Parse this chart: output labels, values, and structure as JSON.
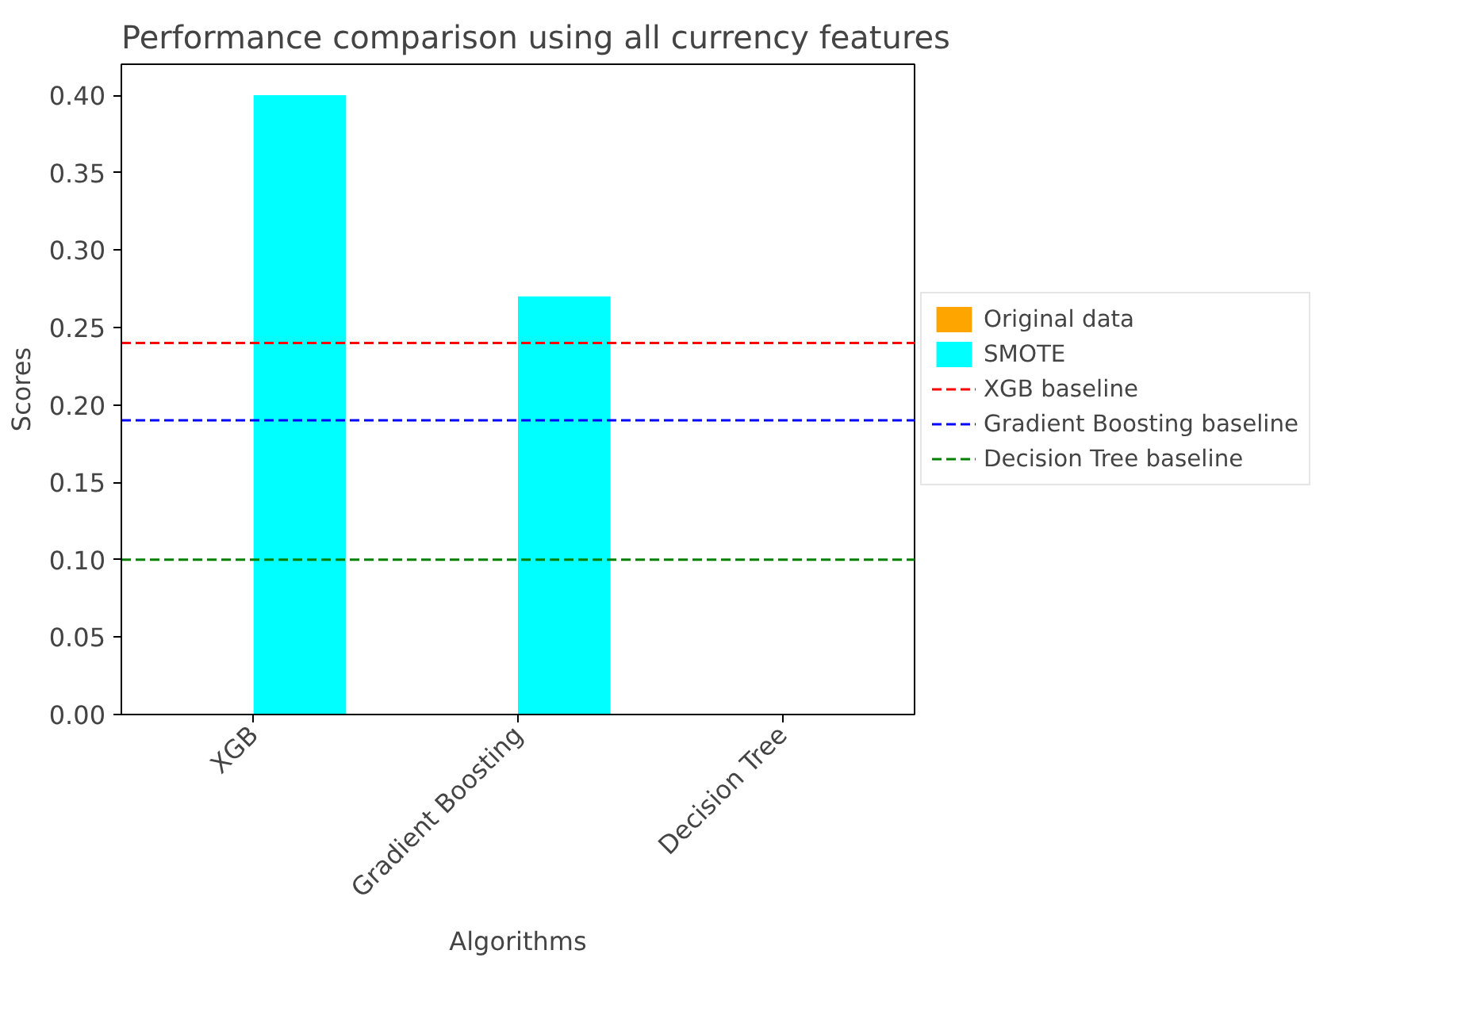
{
  "chart_data": {
    "type": "bar",
    "title": "Performance comparison using all currency features",
    "xlabel": "Algorithms",
    "ylabel": "Scores",
    "categories": [
      "XGB",
      "Gradient Boosting",
      "Decision Tree"
    ],
    "series": [
      {
        "name": "Original data",
        "color": "#ffa500",
        "values": [
          0,
          0,
          0
        ]
      },
      {
        "name": "SMOTE",
        "color": "#00ffff",
        "values": [
          0.4,
          0.27,
          0
        ]
      }
    ],
    "ylim": [
      0,
      0.42
    ],
    "yticks": [
      {
        "value": 0,
        "label": "0.00"
      },
      {
        "value": 0.05,
        "label": "0.05"
      },
      {
        "value": 0.1,
        "label": "0.10"
      },
      {
        "value": 0.15,
        "label": "0.15"
      },
      {
        "value": 0.2,
        "label": "0.20"
      },
      {
        "value": 0.25,
        "label": "0.25"
      },
      {
        "value": 0.3,
        "label": "0.30"
      },
      {
        "value": 0.35,
        "label": "0.35"
      },
      {
        "value": 0.4,
        "label": "0.40"
      }
    ],
    "ref_lines": [
      {
        "axis": "y",
        "value": 0.24,
        "label": "XGB baseline",
        "color": "#ff0000",
        "line_style": "dashed"
      },
      {
        "axis": "y",
        "value": 0.19,
        "label": "Gradient Boosting baseline",
        "color": "#0000ff",
        "line_style": "dashed"
      },
      {
        "axis": "y",
        "value": 0.1,
        "label": "Decision Tree baseline",
        "color": "#008000",
        "line_style": "dashed"
      }
    ],
    "grid": false,
    "legend": "right"
  }
}
